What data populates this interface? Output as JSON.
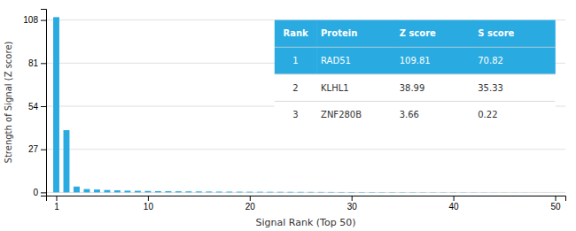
{
  "chart_data": {
    "type": "bar",
    "xlabel": "Signal Rank (Top 50)",
    "ylabel": "Strength of Signal (Z score)",
    "x": [
      1,
      2,
      3,
      4,
      5,
      6,
      7,
      8,
      9,
      10,
      11,
      12,
      13,
      14,
      15,
      16,
      17,
      18,
      19,
      20,
      21,
      22,
      23,
      24,
      25,
      26,
      27,
      28,
      29,
      30,
      31,
      32,
      33,
      34,
      35,
      36,
      37,
      38,
      39,
      40,
      41,
      42,
      43,
      44,
      45,
      46,
      47,
      48,
      49,
      50
    ],
    "values": [
      109.81,
      38.99,
      3.66,
      2.1,
      1.8,
      1.5,
      1.3,
      1.1,
      1.0,
      0.9,
      0.8,
      0.75,
      0.7,
      0.65,
      0.6,
      0.55,
      0.5,
      0.48,
      0.45,
      0.42,
      0.4,
      0.38,
      0.36,
      0.34,
      0.32,
      0.3,
      0.28,
      0.26,
      0.24,
      0.22,
      0.2,
      0.19,
      0.18,
      0.17,
      0.16,
      0.15,
      0.14,
      0.13,
      0.12,
      0.11,
      0.1,
      0.09,
      0.08,
      0.07,
      0.06,
      0.05,
      0.04,
      0.03,
      0.02,
      0.01
    ],
    "color": "#29ABE2",
    "xlim": [
      0,
      51
    ],
    "xticks": [
      1,
      10,
      20,
      30,
      40,
      50
    ],
    "ylim": [
      -2,
      115
    ],
    "yticks": [
      0,
      27,
      54,
      81,
      108
    ],
    "grid": true,
    "table": [
      [
        "Rank",
        "Protein",
        "Z score",
        "S score"
      ],
      [
        "1",
        "RAD51",
        "109.81",
        "70.82"
      ],
      [
        "2",
        "KLHL1",
        "38.99",
        "35.33"
      ],
      [
        "3",
        "ZNF280B",
        "3.66",
        "0.22"
      ]
    ]
  }
}
